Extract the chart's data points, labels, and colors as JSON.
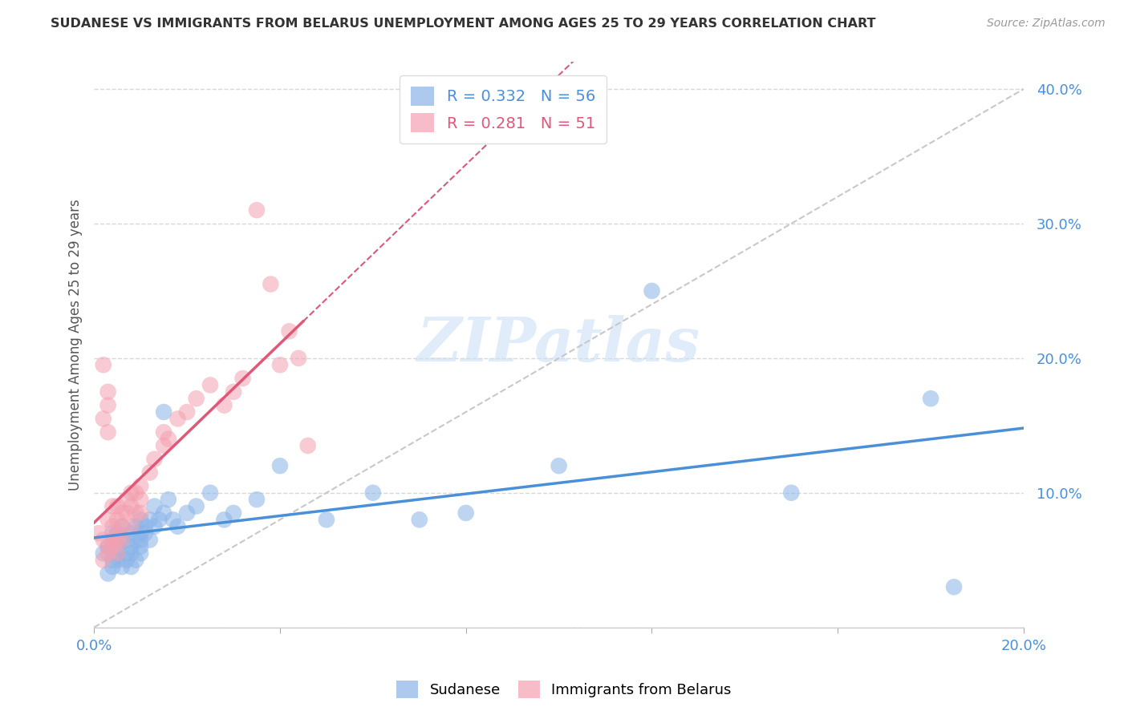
{
  "title": "SUDANESE VS IMMIGRANTS FROM BELARUS UNEMPLOYMENT AMONG AGES 25 TO 29 YEARS CORRELATION CHART",
  "source": "Source: ZipAtlas.com",
  "ylabel": "Unemployment Among Ages 25 to 29 years",
  "xlim": [
    0.0,
    0.2
  ],
  "ylim": [
    0.0,
    0.42
  ],
  "x_ticks": [
    0.0,
    0.04,
    0.08,
    0.12,
    0.16,
    0.2
  ],
  "x_tick_labels": [
    "0.0%",
    "",
    "",
    "",
    "",
    "20.0%"
  ],
  "y_ticks": [
    0.0,
    0.1,
    0.2,
    0.3,
    0.4
  ],
  "y_tick_labels": [
    "",
    "10.0%",
    "20.0%",
    "30.0%",
    "40.0%"
  ],
  "sudanese_color": "#8ab4e8",
  "belarus_color": "#f4a0b0",
  "sudanese_line_color": "#4a90d9",
  "belarus_line_color": "#e05878",
  "sudanese_R": 0.332,
  "sudanese_N": 56,
  "belarus_R": 0.281,
  "belarus_N": 51,
  "legend_label_1": "Sudanese",
  "legend_label_2": "Immigrants from Belarus",
  "watermark": "ZIPatlas",
  "background_color": "#ffffff",
  "sudanese_x": [
    0.002,
    0.003,
    0.003,
    0.004,
    0.004,
    0.004,
    0.005,
    0.005,
    0.005,
    0.005,
    0.006,
    0.006,
    0.006,
    0.007,
    0.007,
    0.007,
    0.008,
    0.008,
    0.008,
    0.008,
    0.009,
    0.009,
    0.009,
    0.01,
    0.01,
    0.01,
    0.01,
    0.01,
    0.011,
    0.011,
    0.012,
    0.012,
    0.013,
    0.013,
    0.014,
    0.015,
    0.015,
    0.016,
    0.017,
    0.018,
    0.02,
    0.022,
    0.025,
    0.028,
    0.03,
    0.035,
    0.04,
    0.05,
    0.06,
    0.07,
    0.08,
    0.1,
    0.12,
    0.15,
    0.18,
    0.185
  ],
  "sudanese_y": [
    0.055,
    0.04,
    0.06,
    0.05,
    0.07,
    0.045,
    0.06,
    0.05,
    0.07,
    0.055,
    0.065,
    0.045,
    0.075,
    0.055,
    0.065,
    0.05,
    0.06,
    0.07,
    0.055,
    0.045,
    0.065,
    0.075,
    0.05,
    0.06,
    0.07,
    0.055,
    0.08,
    0.065,
    0.07,
    0.075,
    0.08,
    0.065,
    0.09,
    0.075,
    0.08,
    0.085,
    0.16,
    0.095,
    0.08,
    0.075,
    0.085,
    0.09,
    0.1,
    0.08,
    0.085,
    0.095,
    0.12,
    0.08,
    0.1,
    0.08,
    0.085,
    0.12,
    0.25,
    0.1,
    0.17,
    0.03
  ],
  "belarus_x": [
    0.001,
    0.002,
    0.002,
    0.003,
    0.003,
    0.003,
    0.004,
    0.004,
    0.004,
    0.004,
    0.005,
    0.005,
    0.005,
    0.005,
    0.005,
    0.006,
    0.006,
    0.006,
    0.007,
    0.007,
    0.008,
    0.008,
    0.008,
    0.009,
    0.009,
    0.01,
    0.01,
    0.01,
    0.012,
    0.013,
    0.015,
    0.015,
    0.016,
    0.018,
    0.02,
    0.022,
    0.025,
    0.028,
    0.03,
    0.032,
    0.035,
    0.038,
    0.04,
    0.042,
    0.044,
    0.046,
    0.002,
    0.002,
    0.003,
    0.003,
    0.003
  ],
  "belarus_y": [
    0.07,
    0.065,
    0.05,
    0.06,
    0.08,
    0.055,
    0.075,
    0.09,
    0.06,
    0.065,
    0.07,
    0.055,
    0.08,
    0.065,
    0.09,
    0.075,
    0.085,
    0.065,
    0.085,
    0.095,
    0.09,
    0.075,
    0.1,
    0.1,
    0.085,
    0.095,
    0.085,
    0.105,
    0.115,
    0.125,
    0.135,
    0.145,
    0.14,
    0.155,
    0.16,
    0.17,
    0.18,
    0.165,
    0.175,
    0.185,
    0.31,
    0.255,
    0.195,
    0.22,
    0.2,
    0.135,
    0.195,
    0.155,
    0.165,
    0.145,
    0.175
  ]
}
